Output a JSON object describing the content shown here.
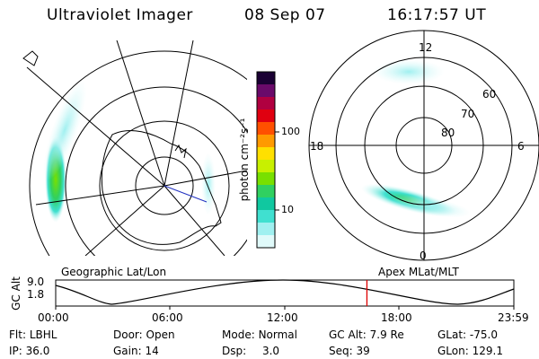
{
  "header": {
    "instrument": "Ultraviolet Imager",
    "date": "08 Sep 07",
    "time": "16:17:57 UT"
  },
  "left_panel": {
    "label": "Geographic Lat/Lon"
  },
  "right_panel": {
    "label": "Apex MLat/MLT",
    "mlt_labels": {
      "top": "12",
      "left": "18",
      "right": "6",
      "bottom": "0"
    },
    "lat_labels": [
      "60",
      "70",
      "80"
    ]
  },
  "colorbar": {
    "unit_label": "photon cm⁻²s⁻¹",
    "ticks": [
      "100",
      "10"
    ],
    "colors": [
      "#1a0033",
      "#6a0a6a",
      "#b00040",
      "#e00010",
      "#ff5000",
      "#ff9a00",
      "#ffe000",
      "#c8f000",
      "#78e000",
      "#30d060",
      "#10c8a0",
      "#40e0d0",
      "#a0f0f0",
      "#e0fafa"
    ]
  },
  "altitude_plot": {
    "ylabel": "GC Alt",
    "yticks": [
      "9.0",
      "1.8"
    ],
    "xticks": [
      "00:00",
      "06:00",
      "12:00",
      "18:00",
      "23:59"
    ],
    "current_time_fraction": 0.6793,
    "marker_color": "#dd0000"
  },
  "info": {
    "filter_label": "Flt:",
    "filter_value": "LBHL",
    "door_label": "Door:",
    "door_value": "Open",
    "mode_label": "Mode:",
    "mode_value": "Normal",
    "gcalt_label": "GC Alt:",
    "gcalt_value": "7.9 Re",
    "glat_label": "GLat:",
    "glat_value": "-75.0",
    "ip_label": "IP:",
    "ip_value": "36.0",
    "gain_label": "Gain:",
    "gain_value": "14",
    "dsp_label": "Dsp:",
    "dsp_value": "3.0",
    "seq_label": "Seq:",
    "seq_value": "39",
    "glon_label": "GLon:",
    "glon_value": "129.1"
  }
}
